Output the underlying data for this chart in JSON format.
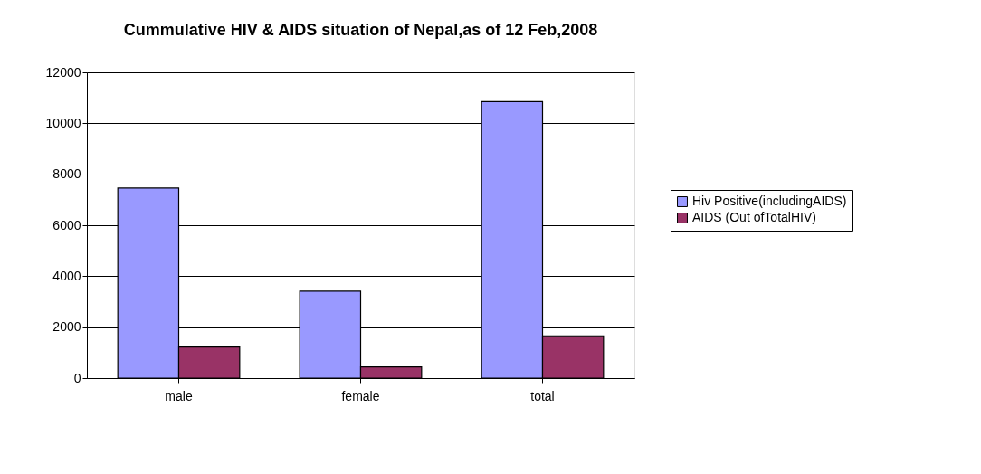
{
  "chart_data": {
    "type": "bar",
    "title": "Cummulative HIV & AIDS situation of Nepal,as of 12 Feb,2008",
    "categories": [
      "male",
      "female",
      "total"
    ],
    "series": [
      {
        "name": "Hiv Positive(includingAIDS)",
        "color": "#9999ff",
        "values": [
          7460,
          3410,
          10850
        ]
      },
      {
        "name": "AIDS (Out ofTotalHIV)",
        "color": "#993366",
        "values": [
          1220,
          440,
          1660
        ]
      }
    ],
    "ylim": [
      0,
      12000
    ],
    "yticks": [
      0,
      2000,
      4000,
      6000,
      8000,
      10000,
      12000
    ],
    "grid": "y",
    "legend": "right"
  }
}
